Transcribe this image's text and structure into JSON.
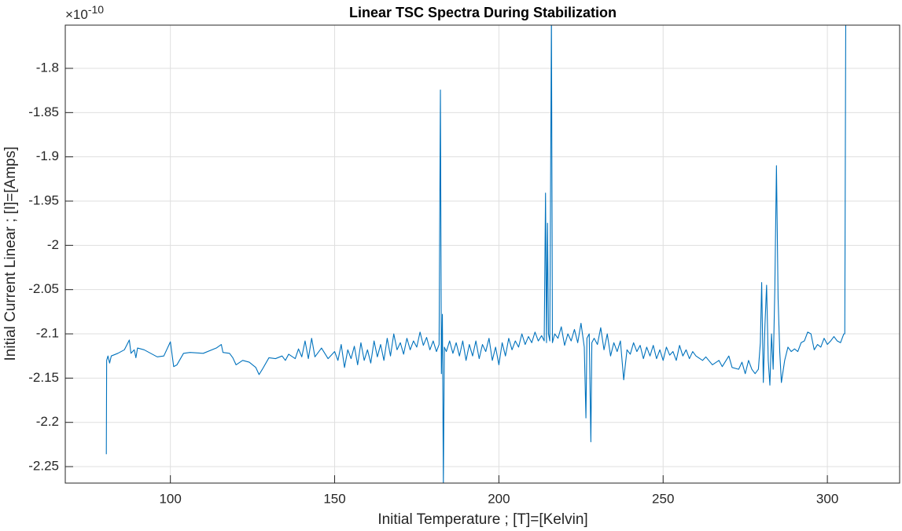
{
  "chart_data": {
    "type": "line",
    "title": "Linear TSC Spectra During Stabilization",
    "x_label": "Initial Temperature ; [T]=[Kelvin]",
    "y_label": "Initial Current Linear ; [I]=[Amps]",
    "y_multiplier": {
      "base": "×10",
      "exponent": "-10"
    },
    "color": "#0072bd",
    "grid": true,
    "xlim": [
      68,
      322
    ],
    "ylim": [
      -2.2686,
      -1.7512
    ],
    "xticks": [
      100,
      150,
      200,
      250,
      300
    ],
    "yticks": [
      -1.8,
      -1.85,
      -1.9,
      -1.95,
      -2,
      -2.05,
      -2.1,
      -2.15,
      -2.2,
      -2.25
    ],
    "x": [
      80.5,
      80.6,
      81,
      81.5,
      82,
      84,
      86,
      87.5,
      88,
      89,
      89.5,
      90,
      92,
      94,
      96,
      98,
      100,
      101,
      102,
      104,
      106,
      110,
      114,
      115.5,
      116,
      118,
      119,
      120,
      122,
      124,
      126,
      127,
      128,
      130,
      132,
      134,
      135,
      136,
      138,
      139,
      140,
      141,
      142,
      143,
      144,
      146,
      148,
      150,
      151,
      152,
      153,
      154,
      155,
      156,
      157,
      158,
      159,
      160,
      161,
      162,
      163,
      164,
      165,
      166,
      167,
      168,
      169,
      170,
      171,
      172,
      173,
      174,
      175,
      176,
      177,
      178,
      179,
      180,
      181,
      181.8,
      182.2,
      182.5,
      182.8,
      183.1,
      183.4,
      184,
      185,
      186,
      187,
      188,
      189,
      190,
      191,
      192,
      193,
      194,
      195,
      196,
      197,
      198,
      199,
      200,
      201,
      202,
      203,
      204,
      205,
      206,
      207,
      208,
      209,
      210,
      211,
      212,
      213,
      213.8,
      214.2,
      214.5,
      214.8,
      215.1,
      215.5,
      216,
      216.3,
      217,
      218,
      219,
      220,
      221,
      222,
      223,
      224,
      225,
      226,
      226.5,
      226.8,
      227.5,
      228,
      228.3,
      229,
      230,
      231,
      232,
      233,
      234,
      235,
      236,
      237,
      238,
      239,
      240,
      241,
      242,
      243,
      244,
      245,
      246,
      247,
      248,
      249,
      250,
      251,
      252,
      253,
      254,
      255,
      256,
      257,
      258,
      259,
      260,
      262,
      263,
      265,
      267,
      268,
      270,
      271,
      273,
      274,
      275,
      276,
      277,
      278,
      279,
      279.6,
      280,
      280.5,
      281,
      281.5,
      282,
      282.5,
      283,
      283.5,
      284,
      284.5,
      285,
      285.5,
      286,
      287,
      288,
      289,
      290,
      291,
      292,
      293,
      294,
      295,
      296,
      297,
      298,
      299,
      300,
      301,
      302,
      303,
      304,
      305,
      305.3,
      305.6
    ],
    "values": [
      -2.236,
      -2.13,
      -2.125,
      -2.133,
      -2.125,
      -2.122,
      -2.118,
      -2.107,
      -2.122,
      -2.118,
      -2.127,
      -2.116,
      -2.118,
      -2.122,
      -2.126,
      -2.125,
      -2.109,
      -2.137,
      -2.135,
      -2.122,
      -2.121,
      -2.122,
      -2.116,
      -2.112,
      -2.121,
      -2.122,
      -2.127,
      -2.135,
      -2.13,
      -2.132,
      -2.138,
      -2.146,
      -2.14,
      -2.127,
      -2.128,
      -2.125,
      -2.13,
      -2.123,
      -2.128,
      -2.117,
      -2.126,
      -2.108,
      -2.128,
      -2.105,
      -2.126,
      -2.116,
      -2.128,
      -2.12,
      -2.13,
      -2.112,
      -2.138,
      -2.118,
      -2.128,
      -2.114,
      -2.135,
      -2.11,
      -2.13,
      -2.118,
      -2.133,
      -2.108,
      -2.126,
      -2.112,
      -2.13,
      -2.105,
      -2.125,
      -2.1,
      -2.118,
      -2.11,
      -2.123,
      -2.105,
      -2.118,
      -2.108,
      -2.115,
      -2.098,
      -2.113,
      -2.104,
      -2.118,
      -2.108,
      -2.12,
      -2.112,
      -1.8245,
      -2.145,
      -2.078,
      -2.27,
      -2.115,
      -2.12,
      -2.108,
      -2.122,
      -2.11,
      -2.125,
      -2.108,
      -2.13,
      -2.112,
      -2.125,
      -2.108,
      -2.128,
      -2.112,
      -2.12,
      -2.105,
      -2.13,
      -2.115,
      -2.135,
      -2.11,
      -2.125,
      -2.105,
      -2.118,
      -2.108,
      -2.115,
      -2.1,
      -2.112,
      -2.103,
      -2.11,
      -2.098,
      -2.108,
      -2.102,
      -2.108,
      -1.941,
      -2.11,
      -1.975,
      -2.1,
      -2.108,
      -1.74,
      -2.11,
      -2.1,
      -2.105,
      -2.092,
      -2.113,
      -2.1,
      -2.108,
      -2.095,
      -2.11,
      -2.088,
      -2.115,
      -2.195,
      -2.105,
      -2.1,
      -2.222,
      -2.11,
      -2.105,
      -2.112,
      -2.093,
      -2.118,
      -2.1,
      -2.125,
      -2.11,
      -2.12,
      -2.108,
      -2.152,
      -2.118,
      -2.123,
      -2.11,
      -2.12,
      -2.113,
      -2.128,
      -2.115,
      -2.125,
      -2.113,
      -2.128,
      -2.118,
      -2.13,
      -2.115,
      -2.124,
      -2.12,
      -2.13,
      -2.113,
      -2.125,
      -2.118,
      -2.128,
      -2.12,
      -2.125,
      -2.13,
      -2.126,
      -2.135,
      -2.13,
      -2.137,
      -2.125,
      -2.138,
      -2.14,
      -2.132,
      -2.145,
      -2.13,
      -2.14,
      -2.145,
      -2.14,
      -2.11,
      -2.042,
      -2.155,
      -2.09,
      -2.045,
      -2.13,
      -2.158,
      -2.1,
      -2.14,
      -2.05,
      -1.91,
      -2.06,
      -2.12,
      -2.155,
      -2.13,
      -2.115,
      -2.12,
      -2.117,
      -2.12,
      -2.11,
      -2.108,
      -2.098,
      -2.1,
      -2.118,
      -2.112,
      -2.115,
      -2.105,
      -2.112,
      -2.108,
      -2.103,
      -2.108,
      -2.11,
      -2.1,
      -2.1,
      -1.74
    ]
  }
}
